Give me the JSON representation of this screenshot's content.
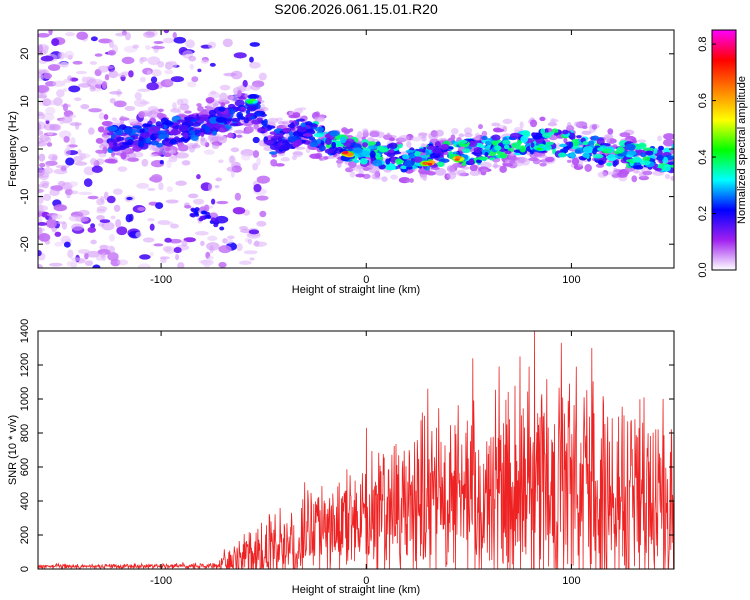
{
  "title": "S206.2026.061.15.01.R20",
  "chart_data": [
    {
      "type": "heatmap",
      "name": "spectrogram",
      "xlabel": "Height of straight line (km)",
      "ylabel": "Frequency (Hz)",
      "xlim": [
        -160,
        150
      ],
      "ylim": [
        -25,
        25
      ],
      "xticks": [
        -100,
        0,
        100
      ],
      "yticks": [
        -20,
        -10,
        0,
        10,
        20
      ],
      "xtick_labels": [
        "-100",
        "0",
        "100"
      ],
      "ytick_labels": [
        "-20",
        "-10",
        "0",
        "10",
        "20"
      ],
      "colorbar": {
        "label": "Normalized spectral amplitude",
        "range": [
          0,
          0.85
        ],
        "ticks": [
          0.0,
          0.2,
          0.4,
          0.6,
          0.8
        ],
        "tick_labels": [
          "0.0",
          "0.2",
          "0.4",
          "0.6",
          "0.8"
        ],
        "colormap": [
          "#ffffff",
          "#a020f0",
          "#0000ff",
          "#00ffff",
          "#00ff00",
          "#ffff00",
          "#ff8000",
          "#ff0000",
          "#ff00ff"
        ]
      },
      "ridge": [
        {
          "x": -120,
          "y": 2
        },
        {
          "x": -90,
          "y": 4
        },
        {
          "x": -70,
          "y": 6
        },
        {
          "x": -55,
          "y": 9
        },
        {
          "x": -45,
          "y": 1
        },
        {
          "x": -30,
          "y": 4
        },
        {
          "x": -20,
          "y": 2
        },
        {
          "x": -10,
          "y": 0
        },
        {
          "x": 0,
          "y": -1
        },
        {
          "x": 20,
          "y": -2
        },
        {
          "x": 40,
          "y": -1
        },
        {
          "x": 60,
          "y": 0
        },
        {
          "x": 80,
          "y": 2
        },
        {
          "x": 100,
          "y": 1
        },
        {
          "x": 120,
          "y": -1
        },
        {
          "x": 145,
          "y": -2
        }
      ],
      "peaks": [
        {
          "x": -10,
          "y": -1,
          "amp": 0.78
        },
        {
          "x": 30,
          "y": -3,
          "amp": 0.75
        },
        {
          "x": 45,
          "y": -2,
          "amp": 0.7
        },
        {
          "x": -55,
          "y": 10,
          "amp": 0.45
        },
        {
          "x": 85,
          "y": 0,
          "amp": 0.42
        }
      ]
    },
    {
      "type": "line",
      "name": "snr",
      "xlabel": "Height of straight line (km)",
      "ylabel": "SNR (10 * v/v)",
      "xlim": [
        -160,
        150
      ],
      "ylim": [
        0,
        1400
      ],
      "xticks": [
        -100,
        0,
        100
      ],
      "yticks": [
        0,
        200,
        400,
        600,
        800,
        1000,
        1200,
        1400
      ],
      "xtick_labels": [
        "-100",
        "0",
        "100"
      ],
      "ytick_labels": [
        "0",
        "200",
        "400",
        "600",
        "800",
        "1000",
        "1200",
        "1400"
      ],
      "color": "#ee2222",
      "envelope": [
        {
          "x": -160,
          "base": 15,
          "amp": 15
        },
        {
          "x": -75,
          "base": 18,
          "amp": 25
        },
        {
          "x": -60,
          "base": 60,
          "amp": 200
        },
        {
          "x": -40,
          "base": 120,
          "amp": 330
        },
        {
          "x": -20,
          "base": 250,
          "amp": 300
        },
        {
          "x": 0,
          "base": 320,
          "amp": 450
        },
        {
          "x": 30,
          "base": 400,
          "amp": 650
        },
        {
          "x": 60,
          "base": 450,
          "amp": 700
        },
        {
          "x": 80,
          "base": 480,
          "amp": 900
        },
        {
          "x": 120,
          "base": 440,
          "amp": 800
        },
        {
          "x": 150,
          "base": 380,
          "amp": 650
        }
      ],
      "peaks": [
        {
          "x": 82,
          "y": 1400
        },
        {
          "x": 95,
          "y": 1330
        },
        {
          "x": 110,
          "y": 1300
        },
        {
          "x": 75,
          "y": 1250
        },
        {
          "x": 52,
          "y": 1240
        },
        {
          "x": 30,
          "y": 1060
        },
        {
          "x": 0,
          "y": 830
        },
        {
          "x": -30,
          "y": 510
        }
      ]
    }
  ]
}
